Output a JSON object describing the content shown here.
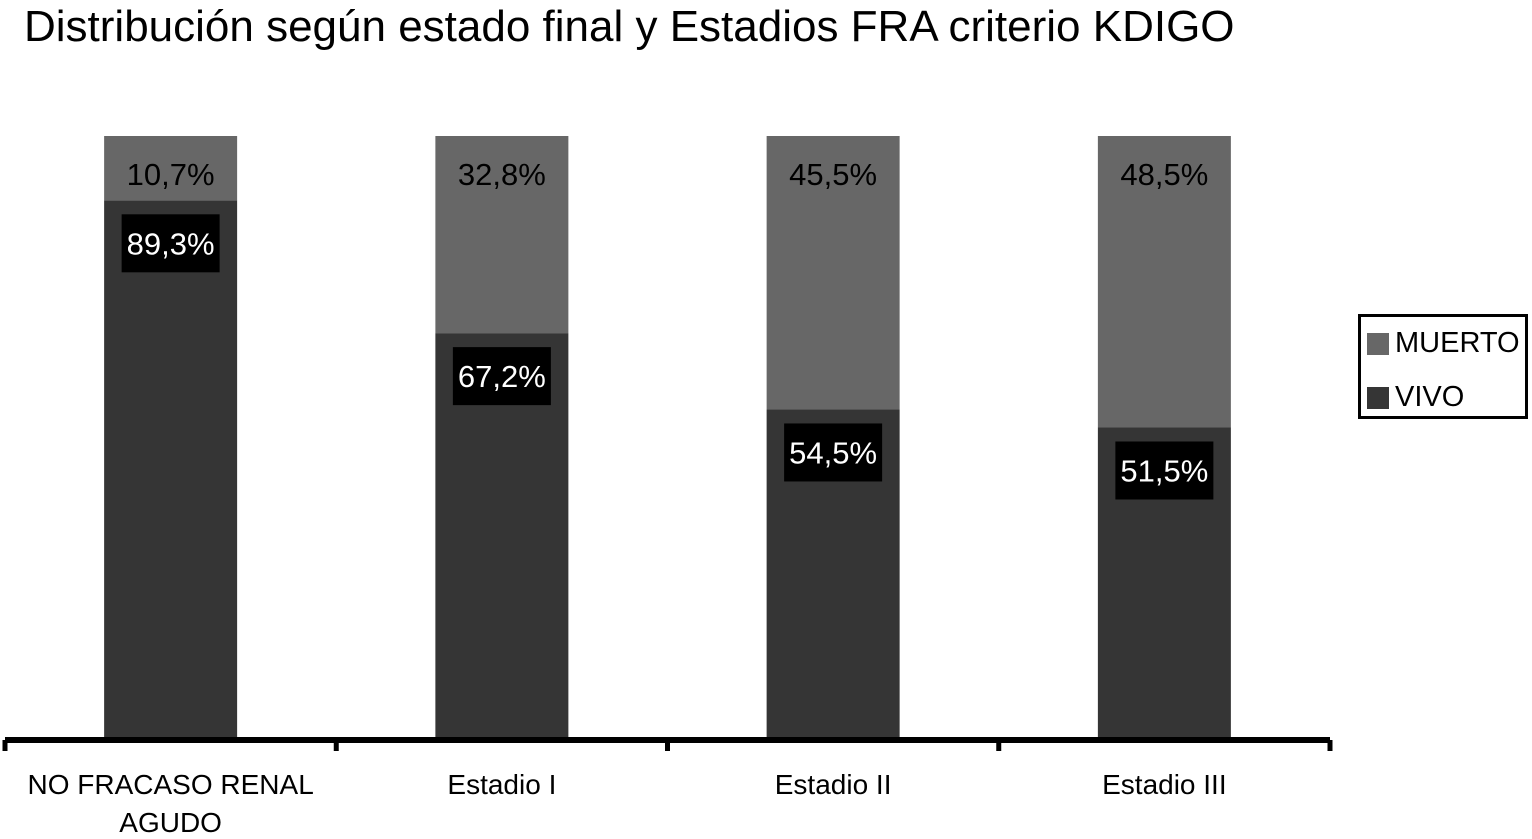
{
  "chart_data": {
    "type": "bar",
    "stacked": true,
    "title": "Distribución según estado final y Estadios FRA criterio KDIGO",
    "categories": [
      [
        "NO FRACASO RENAL",
        "AGUDO"
      ],
      [
        "Estadio I"
      ],
      [
        "Estadio II"
      ],
      [
        "Estadio III"
      ]
    ],
    "series": [
      {
        "name": "VIVO",
        "values": [
          89.3,
          67.2,
          54.5,
          51.5
        ],
        "labels": [
          "89,3%",
          "67,2%",
          "54,5%",
          "51,5%"
        ],
        "color": "#353535"
      },
      {
        "name": "MUERTO",
        "values": [
          10.7,
          32.8,
          45.5,
          48.5
        ],
        "labels": [
          "10,7%",
          "32,8%",
          "45,5%",
          "48,5%"
        ],
        "color": "#676767"
      }
    ],
    "ylim": [
      0,
      100
    ],
    "grid": false,
    "legend_position": "right",
    "legend": [
      {
        "label": "MUERTO",
        "color": "#676767"
      },
      {
        "label": "VIVO",
        "color": "#353535"
      }
    ]
  }
}
